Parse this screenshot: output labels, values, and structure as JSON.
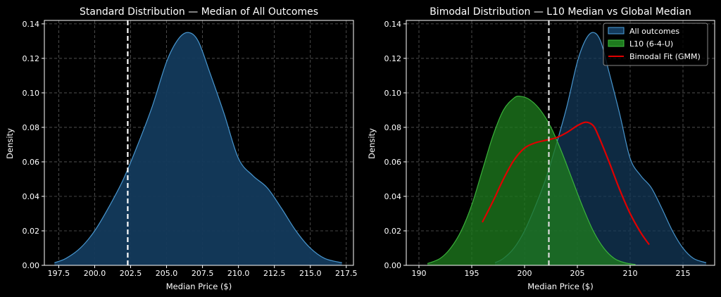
{
  "chart_data": [
    {
      "type": "area",
      "title": "Standard Distribution — Median of All Outcomes",
      "xlabel": "Median Price ($)",
      "ylabel": "Density",
      "xlim": [
        196.5,
        218.0
      ],
      "ylim": [
        0,
        0.142
      ],
      "xticks": [
        197.5,
        200.0,
        202.5,
        205.0,
        207.5,
        210.0,
        212.5,
        215.0,
        217.5
      ],
      "xtick_labels": [
        "197.5",
        "200.0",
        "202.5",
        "205.0",
        "207.5",
        "210.0",
        "212.5",
        "215.0",
        "217.5"
      ],
      "yticks": [
        0,
        0.02,
        0.04,
        0.06,
        0.08,
        0.1,
        0.12,
        0.14
      ],
      "ytick_labels": [
        "0.00",
        "0.02",
        "0.04",
        "0.06",
        "0.08",
        "0.10",
        "0.12",
        "0.14"
      ],
      "grid": true,
      "series": [
        {
          "name": "All outcomes",
          "kind": "kde-fill",
          "color": "#4fa3e0",
          "fill": "#133a5c",
          "x": [
            197.2,
            198.0,
            199.0,
            200.0,
            201.0,
            202.0,
            203.0,
            204.0,
            205.0,
            205.8,
            206.5,
            207.2,
            208.0,
            209.0,
            210.0,
            211.0,
            212.0,
            213.0,
            214.0,
            215.0,
            216.0,
            217.2
          ],
          "y": [
            0.0015,
            0.004,
            0.01,
            0.02,
            0.034,
            0.05,
            0.07,
            0.092,
            0.118,
            0.131,
            0.135,
            0.13,
            0.112,
            0.088,
            0.062,
            0.052,
            0.045,
            0.033,
            0.02,
            0.01,
            0.004,
            0.0015
          ]
        }
      ],
      "vlines": [
        {
          "name": "Global median",
          "x": 202.3,
          "color": "#ffffff",
          "style": "dashed"
        }
      ]
    },
    {
      "type": "area",
      "title": "Bimodal Distribution — L10 Median vs Global Median",
      "xlabel": "Median Price ($)",
      "ylabel": "Density",
      "xlim": [
        188.8,
        218.0
      ],
      "ylim": [
        0,
        0.142
      ],
      "xticks": [
        190,
        195,
        200,
        205,
        210,
        215
      ],
      "xtick_labels": [
        "190",
        "195",
        "200",
        "205",
        "210",
        "215"
      ],
      "yticks": [
        0,
        0.02,
        0.04,
        0.06,
        0.08,
        0.1,
        0.12,
        0.14
      ],
      "ytick_labels": [
        "0.00",
        "0.02",
        "0.04",
        "0.06",
        "0.08",
        "0.10",
        "0.12",
        "0.14"
      ],
      "grid": true,
      "legend_position": "top-right",
      "series": [
        {
          "name": "All outcomes",
          "kind": "kde-fill",
          "color": "#4fa3e0",
          "fill": "#133a5c",
          "x": [
            197.2,
            198.0,
            199.0,
            200.0,
            201.0,
            202.0,
            203.0,
            204.0,
            205.0,
            205.8,
            206.5,
            207.2,
            208.0,
            209.0,
            210.0,
            211.0,
            212.0,
            213.0,
            214.0,
            215.0,
            216.0,
            217.2
          ],
          "y": [
            0.0015,
            0.004,
            0.01,
            0.02,
            0.034,
            0.05,
            0.07,
            0.092,
            0.118,
            0.131,
            0.135,
            0.13,
            0.112,
            0.088,
            0.062,
            0.052,
            0.045,
            0.033,
            0.02,
            0.01,
            0.004,
            0.0015
          ]
        },
        {
          "name": "L10 (6-4-U)",
          "kind": "kde-fill",
          "color": "#3fbf3f",
          "fill": "#1e7a1e",
          "x": [
            190.8,
            192.0,
            193.0,
            194.0,
            195.0,
            196.0,
            197.0,
            198.0,
            199.0,
            199.6,
            200.5,
            201.5,
            202.5,
            203.5,
            204.5,
            205.5,
            206.5,
            207.5,
            208.5,
            209.5,
            210.5
          ],
          "y": [
            0.001,
            0.004,
            0.01,
            0.02,
            0.035,
            0.055,
            0.075,
            0.09,
            0.097,
            0.098,
            0.096,
            0.09,
            0.08,
            0.066,
            0.05,
            0.034,
            0.02,
            0.01,
            0.004,
            0.0015,
            0.0005
          ]
        },
        {
          "name": "Bimodal Fit (GMM)",
          "kind": "line",
          "color": "#e00000",
          "x": [
            196.0,
            197.0,
            198.0,
            199.0,
            200.0,
            201.0,
            202.0,
            203.0,
            204.0,
            205.0,
            205.8,
            206.5,
            207.0,
            208.0,
            209.0,
            210.0,
            211.0,
            211.8
          ],
          "y": [
            0.025,
            0.037,
            0.05,
            0.061,
            0.068,
            0.071,
            0.0725,
            0.074,
            0.077,
            0.081,
            0.083,
            0.081,
            0.075,
            0.06,
            0.044,
            0.03,
            0.019,
            0.012
          ]
        }
      ],
      "vlines": [
        {
          "name": "Global median",
          "x": 202.3,
          "color": "#dddddd",
          "style": "dashed"
        }
      ]
    }
  ]
}
